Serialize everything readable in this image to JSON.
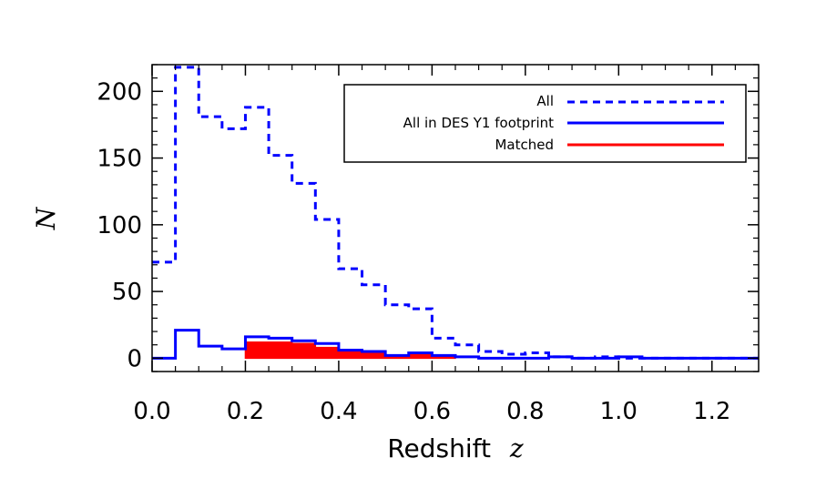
{
  "chart_data": {
    "type": "histogram",
    "xlabel_prefix": "Redshift",
    "xlabel_var": "z",
    "ylabel": "N",
    "xlim": [
      0.0,
      1.3
    ],
    "ylim": [
      -10,
      220
    ],
    "xticks": [
      0.0,
      0.2,
      0.4,
      0.6,
      0.8,
      1.0,
      1.2
    ],
    "xtick_labels": [
      "0.0",
      "0.2",
      "0.4",
      "0.6",
      "0.8",
      "1.0",
      "1.2"
    ],
    "yticks": [
      0,
      50,
      100,
      150,
      200
    ],
    "ytick_labels": [
      "0",
      "50",
      "100",
      "150",
      "200"
    ],
    "bin_edges": [
      0.0,
      0.05,
      0.1,
      0.15,
      0.2,
      0.25,
      0.3,
      0.35,
      0.4,
      0.45,
      0.5,
      0.55,
      0.6,
      0.65,
      0.7,
      0.75,
      0.8,
      0.85,
      0.9,
      0.95,
      1.0,
      1.05,
      1.1,
      1.15,
      1.2,
      1.25,
      1.3
    ],
    "series": [
      {
        "name": "All",
        "style": "dashed",
        "color": "#0000ff",
        "values": [
          72,
          218,
          181,
          172,
          188,
          152,
          131,
          104,
          67,
          55,
          40,
          37,
          15,
          10,
          5,
          3,
          4,
          1,
          0,
          1,
          0,
          0,
          0,
          0,
          0,
          0
        ]
      },
      {
        "name": "All in DES Y1 footprint",
        "style": "solid",
        "color": "#0000ff",
        "values": [
          0,
          21,
          9,
          7,
          16,
          15,
          13,
          11,
          6,
          5,
          2,
          4,
          2,
          1,
          0,
          0,
          0,
          1,
          0,
          0,
          1,
          0,
          0,
          0,
          0,
          0
        ]
      },
      {
        "name": "Matched",
        "style": "filled",
        "color": "#ff0000",
        "values": [
          0,
          0,
          0,
          0,
          12,
          12,
          11,
          8,
          5,
          4,
          1,
          3,
          1,
          0,
          0,
          0,
          0,
          0,
          0,
          0,
          0,
          0,
          0,
          0,
          0,
          0
        ]
      }
    ],
    "legend_position": "top-right"
  }
}
